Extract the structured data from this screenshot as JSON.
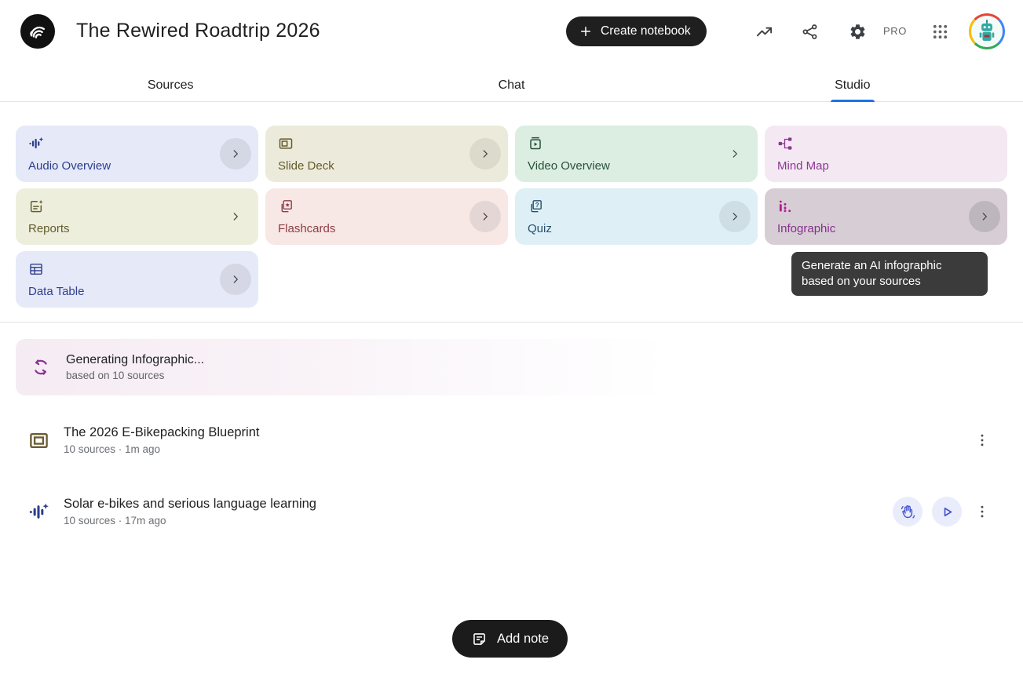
{
  "header": {
    "notebook_title": "The Rewired Roadtrip 2026",
    "create_notebook_label": "Create notebook",
    "pro_label": "PRO"
  },
  "tabs": [
    {
      "label": "Sources",
      "active": false
    },
    {
      "label": "Chat",
      "active": false
    },
    {
      "label": "Studio",
      "active": true
    }
  ],
  "colors": {
    "accent_blue": "#1a73e8",
    "button_black": "#1f1f1f",
    "tooltip_bg": "#3b3b3b"
  },
  "studio_tools": [
    {
      "id": "audio-overview",
      "label": "Audio Overview",
      "icon": "audio-waveform-icon",
      "bg": "#e5e9f8",
      "fg": "#2c3e8c",
      "chevron": "circle",
      "hovered": false
    },
    {
      "id": "slide-deck",
      "label": "Slide Deck",
      "icon": "slide-deck-icon",
      "bg": "#ecebdb",
      "fg": "#655a2a",
      "chevron": "circle",
      "hovered": false
    },
    {
      "id": "video-overview",
      "label": "Video Overview",
      "icon": "video-overview-icon",
      "bg": "#dcede1",
      "fg": "#275239",
      "chevron": "plain",
      "hovered": false
    },
    {
      "id": "mind-map",
      "label": "Mind Map",
      "icon": "mind-map-icon",
      "bg": "#f4e9f2",
      "fg": "#8c3694",
      "chevron": "none",
      "hovered": false
    },
    {
      "id": "reports",
      "label": "Reports",
      "icon": "reports-icon",
      "bg": "#eeeedd",
      "fg": "#635c2b",
      "chevron": "plain",
      "hovered": false
    },
    {
      "id": "flashcards",
      "label": "Flashcards",
      "icon": "flashcards-icon",
      "bg": "#f7e7e5",
      "fg": "#8e3e44",
      "chevron": "circle",
      "hovered": false
    },
    {
      "id": "quiz",
      "label": "Quiz",
      "icon": "quiz-icon",
      "bg": "#def0f6",
      "fg": "#274e6e",
      "chevron": "circle",
      "hovered": false
    },
    {
      "id": "infographic",
      "label": "Infographic",
      "icon": "infographic-icon",
      "bg": "#d7ced5",
      "fg": "#84308c",
      "icon_color": "#ad1f8f",
      "chevron": "circle",
      "hovered": true
    },
    {
      "id": "data-table",
      "label": "Data Table",
      "icon": "data-table-icon",
      "bg": "#e6e9f7",
      "fg": "#2f3f8f",
      "chevron": "circle",
      "hovered": false
    }
  ],
  "tooltip": {
    "line1": "Generate an AI infographic",
    "line2": "based on your sources"
  },
  "generating_item": {
    "title": "Generating Infographic...",
    "subtitle": "based on 10 sources",
    "icon": "sync-icon",
    "color": "#8e2f96"
  },
  "artifacts": [
    {
      "title": "The 2026 E-Bikepacking Blueprint",
      "meta": "10 sources · 1m ago",
      "icon": "slide-frame-icon",
      "icon_color": "#6b5d33",
      "actions": [
        "menu"
      ]
    },
    {
      "title": "Solar e-bikes and serious language learning",
      "meta": "10 sources · 17m ago",
      "icon": "audio-waveform-icon",
      "icon_color": "#2c3e8c",
      "actions": [
        "interactive",
        "play",
        "menu"
      ]
    }
  ],
  "footer": {
    "add_note_label": "Add note"
  }
}
